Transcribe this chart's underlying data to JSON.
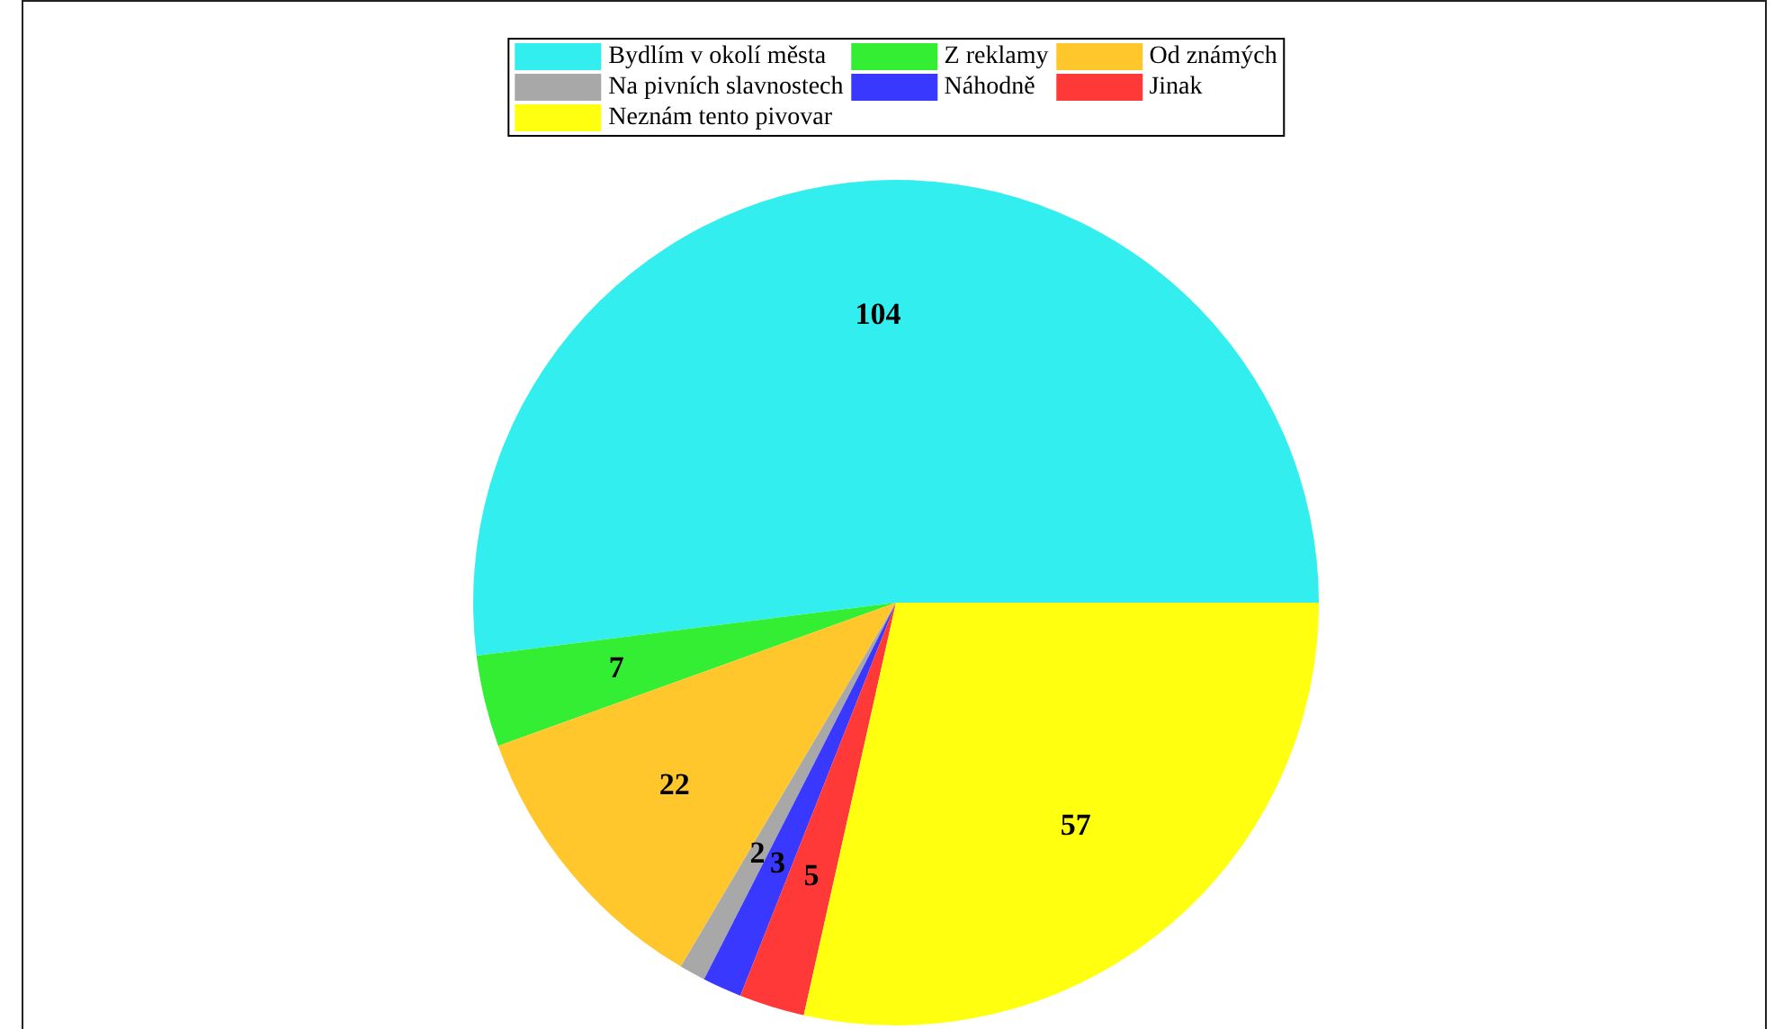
{
  "chart_data": {
    "type": "pie",
    "categories": [
      "Bydlím v okolí města",
      "Z reklamy",
      "Od známých",
      "Na pivních slavnostech",
      "Náhodně",
      "Jinak",
      "Neznám tento pivovar"
    ],
    "values": [
      104,
      7,
      22,
      2,
      3,
      5,
      57
    ],
    "colors": [
      "#33eeee",
      "#33ee33",
      "#ffc72c",
      "#a8a8a8",
      "#3838ff",
      "#ff3838",
      "#ffff10"
    ],
    "data_labels": true,
    "legend": "top"
  }
}
